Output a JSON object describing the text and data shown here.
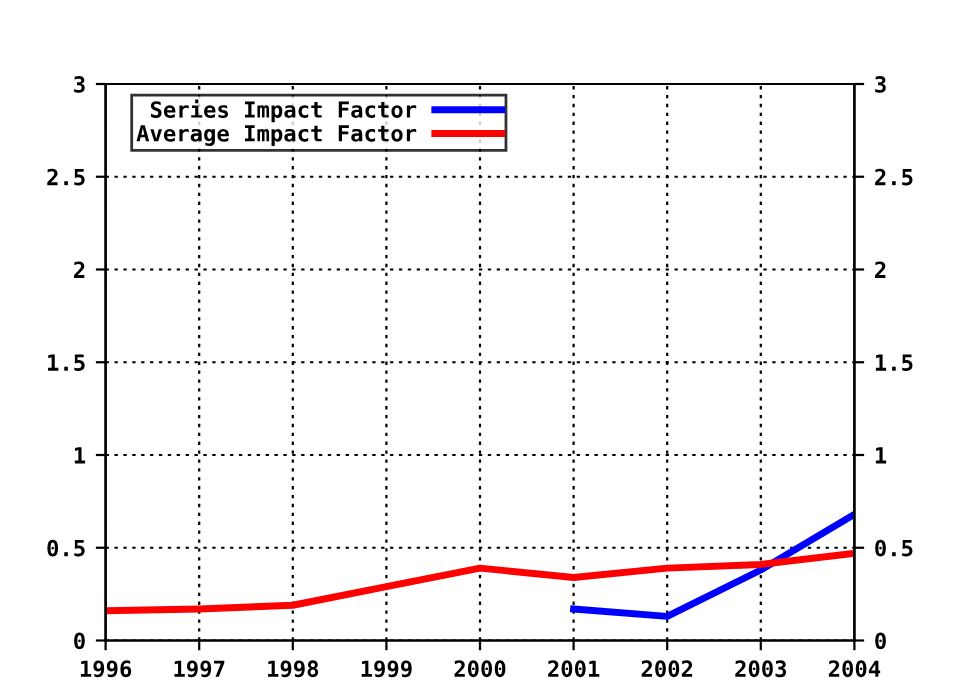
{
  "chart_data": {
    "type": "line",
    "x": [
      1996,
      1997,
      1998,
      1999,
      2000,
      2001,
      2002,
      2003,
      2004
    ],
    "series": [
      {
        "name": "Series Impact Factor",
        "color": "#0000ff",
        "values": [
          null,
          null,
          null,
          null,
          null,
          0.17,
          0.13,
          0.38,
          0.68
        ]
      },
      {
        "name": "Average Impact Factor",
        "color": "#ff0000",
        "values": [
          0.16,
          0.17,
          0.19,
          0.29,
          0.39,
          0.34,
          0.39,
          0.41,
          0.47
        ]
      }
    ],
    "xlim": [
      1996,
      2004
    ],
    "xticks": [
      1996,
      1997,
      1998,
      1999,
      2000,
      2001,
      2002,
      2003,
      2004
    ],
    "ylim": [
      0,
      3
    ],
    "yticks": [
      0,
      0.5,
      1,
      1.5,
      2,
      2.5,
      3
    ],
    "y2lim": [
      0,
      3
    ],
    "y2ticks": [
      0,
      0.5,
      1,
      1.5,
      2,
      2.5,
      3
    ],
    "grid": true,
    "legend": "top left"
  }
}
